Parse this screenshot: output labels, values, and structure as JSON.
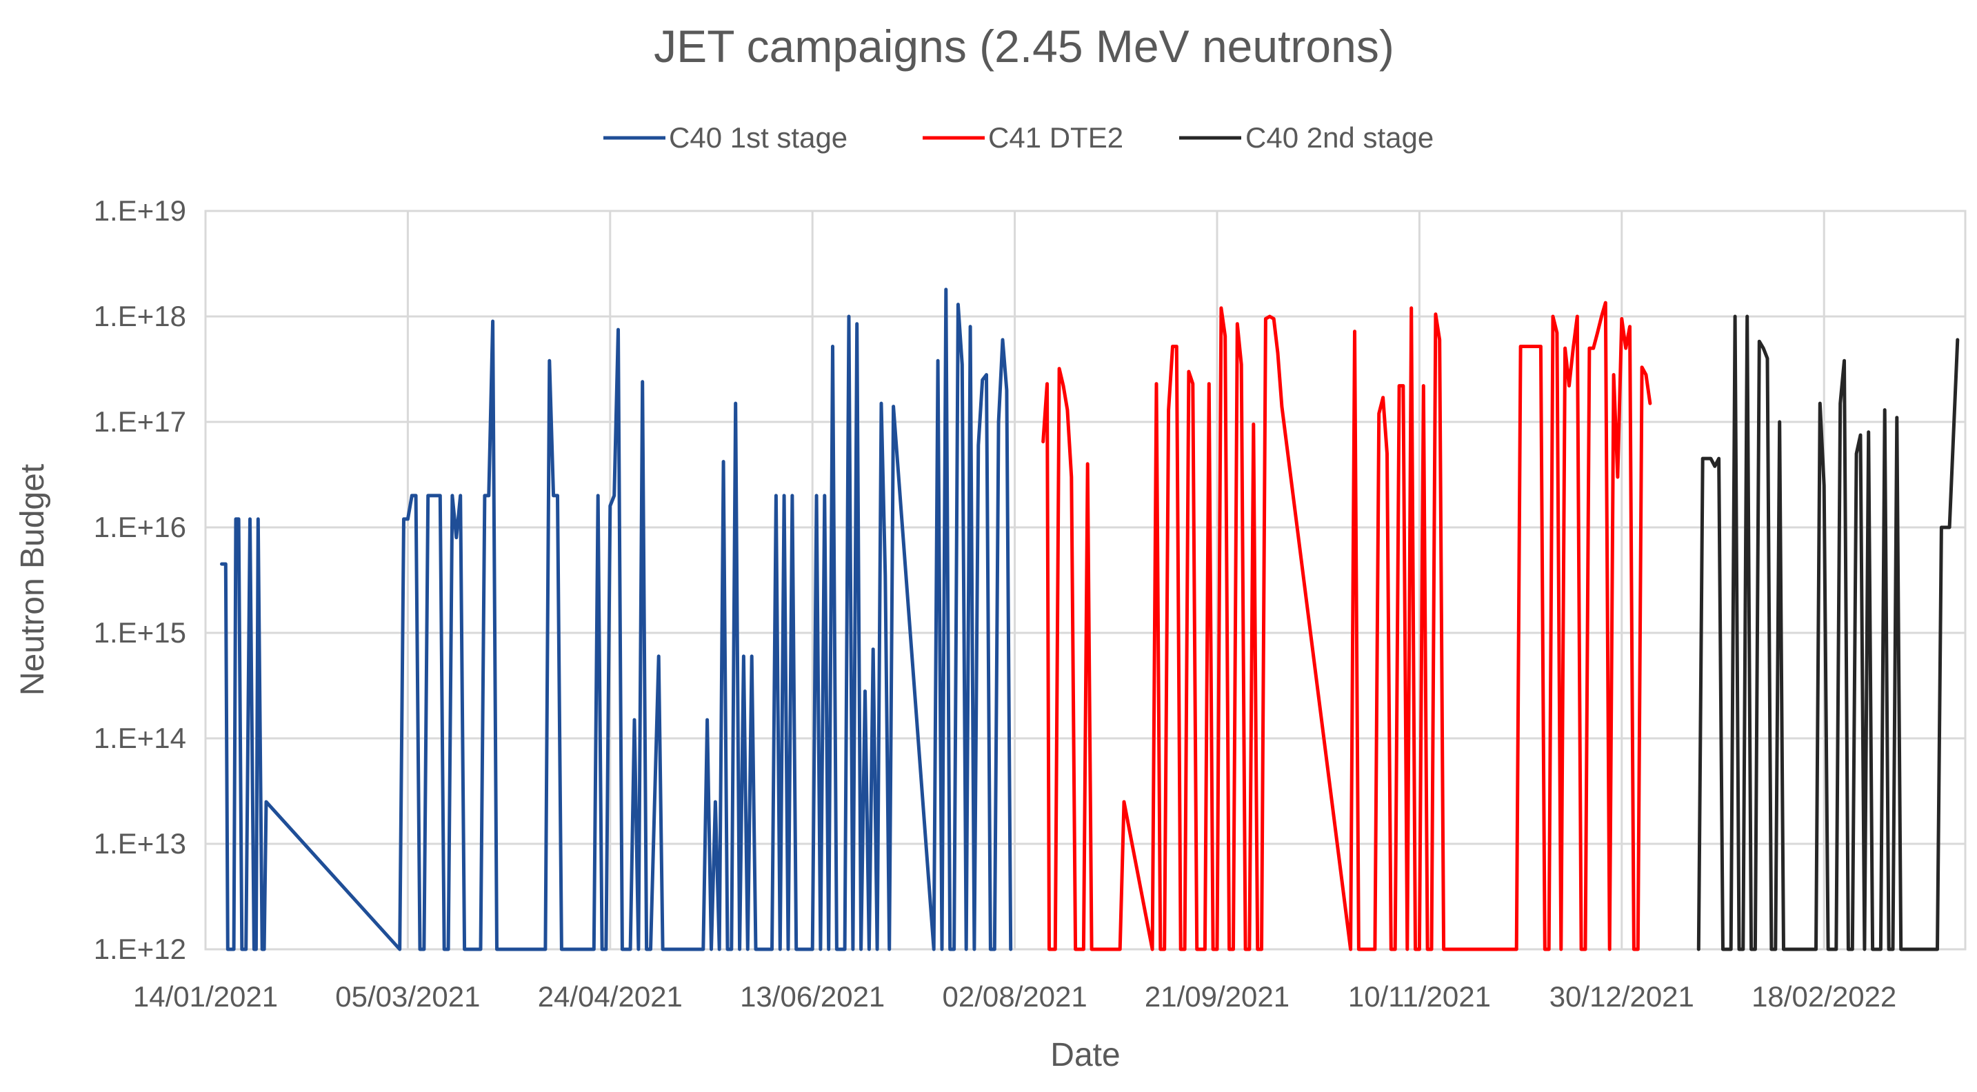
{
  "chart_data": {
    "type": "line",
    "title": "JET campaigns (2.45 MeV neutrons)",
    "xlabel": "Date",
    "ylabel": "Neutron Budget",
    "yscale": "log",
    "ylim": [
      1000000000000.0,
      1e+19
    ],
    "yticks": [
      {
        "value": 1000000000000.0,
        "label": "1.E+12"
      },
      {
        "value": 10000000000000.0,
        "label": "1.E+13"
      },
      {
        "value": 100000000000000.0,
        "label": "1.E+14"
      },
      {
        "value": 1000000000000000.0,
        "label": "1.E+15"
      },
      {
        "value": 1e+16,
        "label": "1.E+16"
      },
      {
        "value": 1e+17,
        "label": "1.E+17"
      },
      {
        "value": 1e+18,
        "label": "1.E+18"
      },
      {
        "value": 1e+19,
        "label": "1.E+19"
      }
    ],
    "xlim_days": [
      0,
      439
    ],
    "x_unit": "days since 14/01/2021",
    "xticks": [
      {
        "day": 0,
        "label": "14/01/2021"
      },
      {
        "day": 50,
        "label": "05/03/2021"
      },
      {
        "day": 100,
        "label": "24/04/2021"
      },
      {
        "day": 150,
        "label": "13/06/2021"
      },
      {
        "day": 200,
        "label": "02/08/2021"
      },
      {
        "day": 250,
        "label": "21/09/2021"
      },
      {
        "day": 300,
        "label": "10/11/2021"
      },
      {
        "day": 350,
        "label": "30/12/2021"
      },
      {
        "day": 400,
        "label": "18/02/2022"
      }
    ],
    "legend_position": "top-center",
    "series": [
      {
        "name": "C40 1st stage",
        "color": "#1f4e97",
        "points": [
          [
            4,
            4500000000000000.0
          ],
          [
            5,
            4500000000000000.0
          ],
          [
            5.5,
            1000000000000.0
          ],
          [
            7,
            1000000000000.0
          ],
          [
            7.5,
            1.2e+16
          ],
          [
            8.2,
            1.2e+16
          ],
          [
            9,
            1000000000000.0
          ],
          [
            10,
            1000000000000.0
          ],
          [
            11,
            1.2e+16
          ],
          [
            12,
            1000000000000.0
          ],
          [
            12.5,
            1000000000000.0
          ],
          [
            13,
            1.2e+16
          ],
          [
            14,
            1000000000000.0
          ],
          [
            14.5,
            1000000000000.0
          ],
          [
            15,
            25000000000000.0
          ],
          [
            48,
            1000000000000.0
          ],
          [
            49,
            1.2e+16
          ],
          [
            50,
            1.2e+16
          ],
          [
            51,
            2e+16
          ],
          [
            52,
            2e+16
          ],
          [
            53,
            1000000000000.0
          ],
          [
            54,
            1000000000000.0
          ],
          [
            55,
            2e+16
          ],
          [
            57,
            2e+16
          ],
          [
            58,
            2e+16
          ],
          [
            59,
            1000000000000.0
          ],
          [
            60,
            1000000000000.0
          ],
          [
            61,
            2e+16
          ],
          [
            62,
            8000000000000000.0
          ],
          [
            63,
            2e+16
          ],
          [
            64,
            1000000000000.0
          ],
          [
            68,
            1000000000000.0
          ],
          [
            69,
            2e+16
          ],
          [
            70,
            2e+16
          ],
          [
            71,
            9e+17
          ],
          [
            72,
            1000000000000.0
          ],
          [
            84,
            1000000000000.0
          ],
          [
            85,
            3.8e+17
          ],
          [
            86,
            2e+16
          ],
          [
            87,
            2e+16
          ],
          [
            88,
            1000000000000.0
          ],
          [
            96,
            1000000000000.0
          ],
          [
            97,
            2e+16
          ],
          [
            98,
            1000000000000.0
          ],
          [
            99,
            1000000000000.0
          ],
          [
            100,
            1.6e+16
          ],
          [
            101,
            2e+16
          ],
          [
            102,
            7.5e+17
          ],
          [
            103,
            1000000000000.0
          ],
          [
            105,
            1000000000000.0
          ],
          [
            106,
            150000000000000.0
          ],
          [
            107,
            1000000000000.0
          ],
          [
            108,
            2.4e+17
          ],
          [
            109,
            1000000000000.0
          ],
          [
            110,
            1000000000000.0
          ],
          [
            111,
            25000000000000.0
          ],
          [
            112,
            600000000000000.0
          ],
          [
            113,
            1000000000000.0
          ],
          [
            123,
            1000000000000.0
          ],
          [
            124,
            150000000000000.0
          ],
          [
            125,
            1000000000000.0
          ],
          [
            126,
            25000000000000.0
          ],
          [
            127,
            1000000000000.0
          ],
          [
            128,
            4.2e+16
          ],
          [
            129,
            1000000000000.0
          ],
          [
            130,
            1000000000000.0
          ],
          [
            131,
            1.5e+17
          ],
          [
            132,
            1000000000000.0
          ],
          [
            133,
            600000000000000.0
          ],
          [
            134,
            1000000000000.0
          ],
          [
            135,
            600000000000000.0
          ],
          [
            136,
            1000000000000.0
          ],
          [
            140,
            1000000000000.0
          ],
          [
            141,
            2e+16
          ],
          [
            142,
            1000000000000.0
          ],
          [
            143,
            2e+16
          ],
          [
            144,
            1000000000000.0
          ],
          [
            145,
            2e+16
          ],
          [
            146,
            1000000000000.0
          ],
          [
            150,
            1000000000000.0
          ],
          [
            151,
            2e+16
          ],
          [
            152,
            1000000000000.0
          ],
          [
            153,
            2e+16
          ],
          [
            154,
            1000000000000.0
          ],
          [
            155,
            5.2e+17
          ],
          [
            156,
            1000000000000.0
          ],
          [
            158,
            1000000000000.0
          ],
          [
            159,
            1e+18
          ],
          [
            160,
            1000000000000.0
          ],
          [
            161,
            8.5e+17
          ],
          [
            162,
            1000000000000.0
          ],
          [
            163,
            280000000000000.0
          ],
          [
            164,
            1000000000000.0
          ],
          [
            165,
            700000000000000.0
          ],
          [
            166,
            1000000000000.0
          ],
          [
            167,
            1.5e+17
          ],
          [
            168,
            3500000000000000.0
          ],
          [
            169,
            1000000000000.0
          ],
          [
            170,
            1.4e+17
          ],
          [
            180,
            1000000000000.0
          ],
          [
            181,
            3.8e+17
          ],
          [
            182,
            1000000000000.0
          ],
          [
            183,
            1.8e+18
          ],
          [
            184,
            1000000000000.0
          ],
          [
            185,
            1000000000000.0
          ],
          [
            186,
            1.3e+18
          ],
          [
            187,
            3.5e+17
          ],
          [
            188,
            1000000000000.0
          ],
          [
            189,
            8e+17
          ],
          [
            190,
            1000000000000.0
          ],
          [
            191,
            6e+16
          ],
          [
            192,
            2.5e+17
          ],
          [
            193,
            2.8e+17
          ],
          [
            194,
            1000000000000.0
          ],
          [
            195,
            1000000000000.0
          ],
          [
            196,
            1e+17
          ],
          [
            197,
            6e+17
          ],
          [
            198,
            2e+17
          ],
          [
            199,
            1000000000000.0
          ]
        ]
      },
      {
        "name": "C41 DTE2",
        "color": "#ff0000",
        "points": [
          [
            207,
            6.5e+16
          ],
          [
            208,
            2.3e+17
          ],
          [
            208.5,
            1000000000000.0
          ],
          [
            210,
            1000000000000.0
          ],
          [
            211,
            3.2e+17
          ],
          [
            212,
            2.2e+17
          ],
          [
            213,
            1.3e+17
          ],
          [
            214,
            3e+16
          ],
          [
            215,
            1000000000000.0
          ],
          [
            217,
            1000000000000.0
          ],
          [
            218,
            4e+16
          ],
          [
            219,
            1000000000000.0
          ],
          [
            226,
            1000000000000.0
          ],
          [
            227,
            25000000000000.0
          ],
          [
            234,
            1000000000000.0
          ],
          [
            235,
            2.3e+17
          ],
          [
            236,
            1000000000000.0
          ],
          [
            237,
            1000000000000.0
          ],
          [
            238,
            1.3e+17
          ],
          [
            239,
            5.2e+17
          ],
          [
            240,
            5.2e+17
          ],
          [
            241,
            1000000000000.0
          ],
          [
            242,
            1000000000000.0
          ],
          [
            243,
            3e+17
          ],
          [
            244,
            2.3e+17
          ],
          [
            245,
            1000000000000.0
          ],
          [
            247,
            1000000000000.0
          ],
          [
            248,
            2.3e+17
          ],
          [
            249,
            1000000000000.0
          ],
          [
            250,
            1000000000000.0
          ],
          [
            251,
            1.2e+18
          ],
          [
            252,
            6.5e+17
          ],
          [
            253,
            1000000000000.0
          ],
          [
            254,
            1000000000000.0
          ],
          [
            255,
            8.5e+17
          ],
          [
            256,
            3.5e+17
          ],
          [
            257,
            1000000000000.0
          ],
          [
            258,
            1000000000000.0
          ],
          [
            259,
            9.5e+16
          ],
          [
            260,
            1000000000000.0
          ],
          [
            261,
            1000000000000.0
          ],
          [
            262,
            9.5e+17
          ],
          [
            263,
            1e+18
          ],
          [
            264,
            9.5e+17
          ],
          [
            265,
            4.5e+17
          ],
          [
            266,
            1.4e+17
          ],
          [
            283,
            1000000000000.0
          ],
          [
            284,
            7.2e+17
          ],
          [
            285,
            1000000000000.0
          ],
          [
            289,
            1000000000000.0
          ],
          [
            290,
            1.2e+17
          ],
          [
            291,
            1.7e+17
          ],
          [
            292,
            5e+16
          ],
          [
            293,
            1000000000000.0
          ],
          [
            294,
            1000000000000.0
          ],
          [
            295,
            2.2e+17
          ],
          [
            296,
            2.2e+17
          ],
          [
            297,
            1000000000000.0
          ],
          [
            298,
            1.2e+18
          ],
          [
            299,
            1000000000000.0
          ],
          [
            300,
            1000000000000.0
          ],
          [
            301,
            2.2e+17
          ],
          [
            302,
            1000000000000.0
          ],
          [
            303,
            1000000000000.0
          ],
          [
            304,
            1.05e+18
          ],
          [
            305,
            6e+17
          ],
          [
            306,
            1000000000000.0
          ],
          [
            324,
            1000000000000.0
          ],
          [
            325,
            5.2e+17
          ],
          [
            327,
            5.2e+17
          ],
          [
            328,
            5.2e+17
          ],
          [
            330,
            5.2e+17
          ],
          [
            331,
            1000000000000.0
          ],
          [
            332,
            1000000000000.0
          ],
          [
            333,
            1e+18
          ],
          [
            334,
            7e+17
          ],
          [
            335,
            1000000000000.0
          ],
          [
            336,
            5e+17
          ],
          [
            337,
            2.2e+17
          ],
          [
            338,
            5e+17
          ],
          [
            339,
            1e+18
          ],
          [
            340,
            1000000000000.0
          ],
          [
            341,
            1000000000000.0
          ],
          [
            342,
            5e+17
          ],
          [
            343,
            5e+17
          ],
          [
            344,
            7e+17
          ],
          [
            345,
            1e+18
          ],
          [
            346,
            1.35e+18
          ],
          [
            347,
            1000000000000.0
          ],
          [
            348,
            2.8e+17
          ],
          [
            349,
            3e+16
          ],
          [
            350,
            9.5e+17
          ],
          [
            351,
            5e+17
          ],
          [
            352,
            8e+17
          ],
          [
            353,
            1000000000000.0
          ],
          [
            354,
            1000000000000.0
          ],
          [
            355,
            3.3e+17
          ],
          [
            356,
            2.8e+17
          ],
          [
            357,
            1.5e+17
          ]
        ]
      },
      {
        "name": "C40 2nd stage",
        "color": "#262626",
        "points": [
          [
            369,
            1000000000000.0
          ],
          [
            370,
            4.5e+16
          ],
          [
            372,
            4.5e+16
          ],
          [
            373,
            3.8e+16
          ],
          [
            374,
            4.5e+16
          ],
          [
            375,
            1000000000000.0
          ],
          [
            377,
            1000000000000.0
          ],
          [
            378,
            1e+18
          ],
          [
            379,
            1000000000000.0
          ],
          [
            380,
            1000000000000.0
          ],
          [
            381,
            1e+18
          ],
          [
            382,
            1000000000000.0
          ],
          [
            383,
            1000000000000.0
          ],
          [
            384,
            5.8e+17
          ],
          [
            385,
            5e+17
          ],
          [
            386,
            4e+17
          ],
          [
            387,
            1000000000000.0
          ],
          [
            388,
            1000000000000.0
          ],
          [
            389,
            1e+17
          ],
          [
            390,
            1000000000000.0
          ],
          [
            398,
            1000000000000.0
          ],
          [
            399,
            1.5e+17
          ],
          [
            400,
            2.5e+16
          ],
          [
            401,
            1000000000000.0
          ],
          [
            403,
            1000000000000.0
          ],
          [
            404,
            1.5e+17
          ],
          [
            405,
            3.8e+17
          ],
          [
            406,
            1000000000000.0
          ],
          [
            407,
            1000000000000.0
          ],
          [
            408,
            5e+16
          ],
          [
            409,
            7.5e+16
          ],
          [
            410,
            1000000000000.0
          ],
          [
            411,
            8e+16
          ],
          [
            412,
            1000000000000.0
          ],
          [
            414,
            1000000000000.0
          ],
          [
            415,
            1.3e+17
          ],
          [
            416,
            1000000000000.0
          ],
          [
            417,
            1000000000000.0
          ],
          [
            418,
            1.1e+17
          ],
          [
            419,
            1000000000000.0
          ],
          [
            428,
            1000000000000.0
          ],
          [
            429,
            1e+16
          ],
          [
            431,
            1e+16
          ],
          [
            433,
            6e+17
          ]
        ]
      }
    ]
  }
}
